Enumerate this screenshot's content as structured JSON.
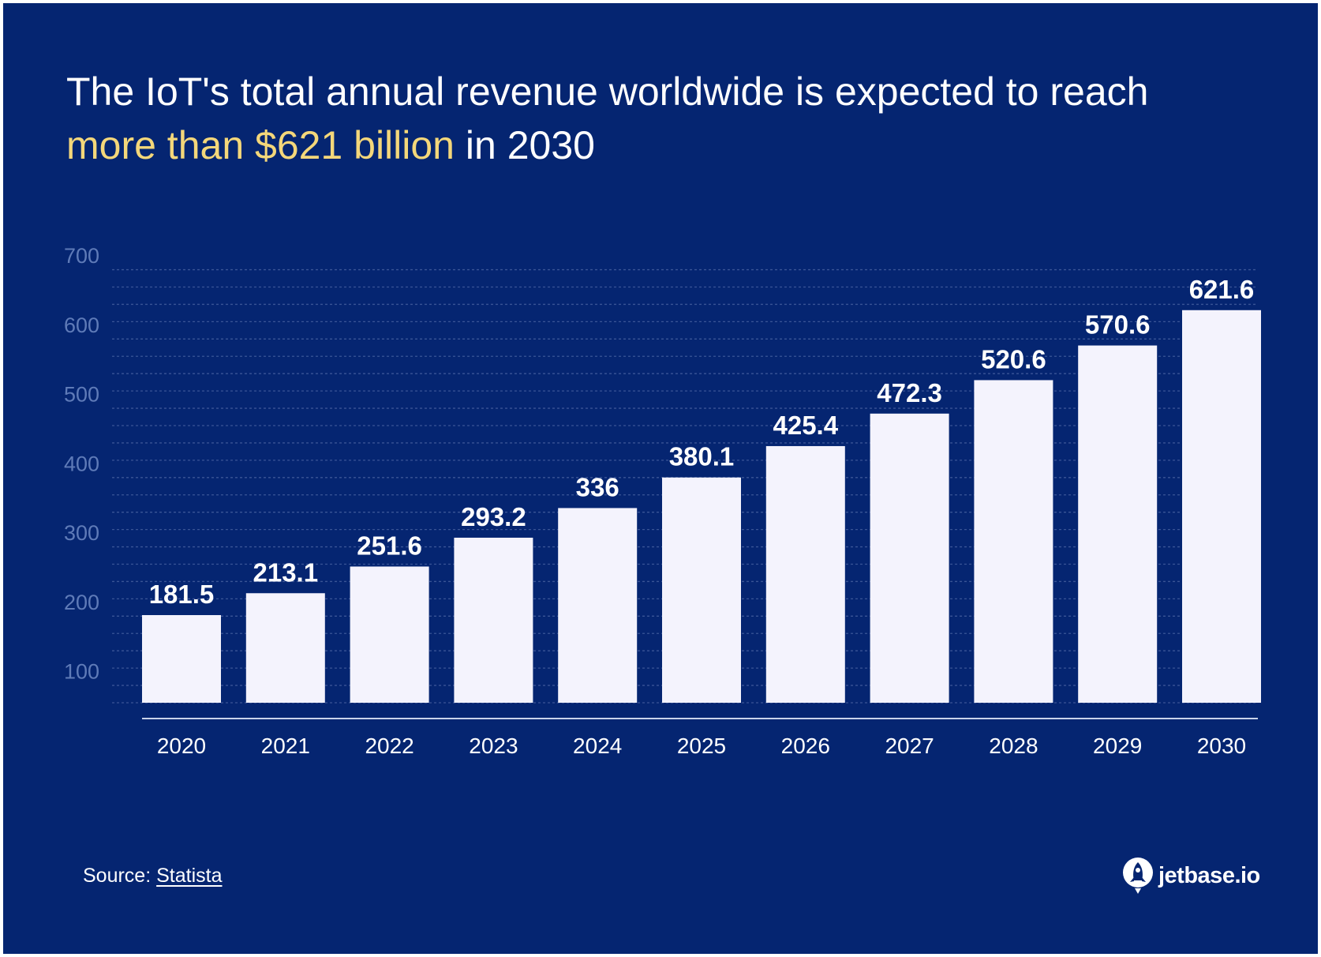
{
  "header": {
    "title_part1": "The IoT's total annual revenue worldwide is expected to reach",
    "title_highlight": "more than $621 billion",
    "title_part2": "in 2030"
  },
  "chart_data": {
    "type": "bar",
    "title": "The IoT's total annual revenue worldwide is expected to reach more than $621 billion in 2030",
    "categories": [
      "2020",
      "2021",
      "2022",
      "2023",
      "2024",
      "2025",
      "2026",
      "2027",
      "2028",
      "2029",
      "2030"
    ],
    "values": [
      181.5,
      213.1,
      251.6,
      293.2,
      336,
      380.1,
      425.4,
      472.3,
      520.6,
      570.6,
      621.6
    ],
    "value_labels": [
      "181.5",
      "213.1",
      "251.6",
      "293.2",
      "336",
      "380.1",
      "425.4",
      "472.3",
      "520.6",
      "570.6",
      "621.6"
    ],
    "y_ticks": [
      100,
      200,
      300,
      400,
      500,
      600,
      700
    ],
    "ylim": [
      55,
      700
    ],
    "xlabel": "",
    "ylabel": "",
    "grid": true,
    "colors": {
      "background": "#052571",
      "bar": "#f4f3fd",
      "grid": "#3a5596",
      "tick_label": "#5f7bb8",
      "axis_line": "#c9d3ea",
      "value_label": "#ffffff",
      "category_label": "#ffffff"
    }
  },
  "footer": {
    "source_label": "Source:",
    "source_link": "Statista",
    "logo_text": "jetbase.io",
    "logo_icon": "rocket-icon"
  }
}
